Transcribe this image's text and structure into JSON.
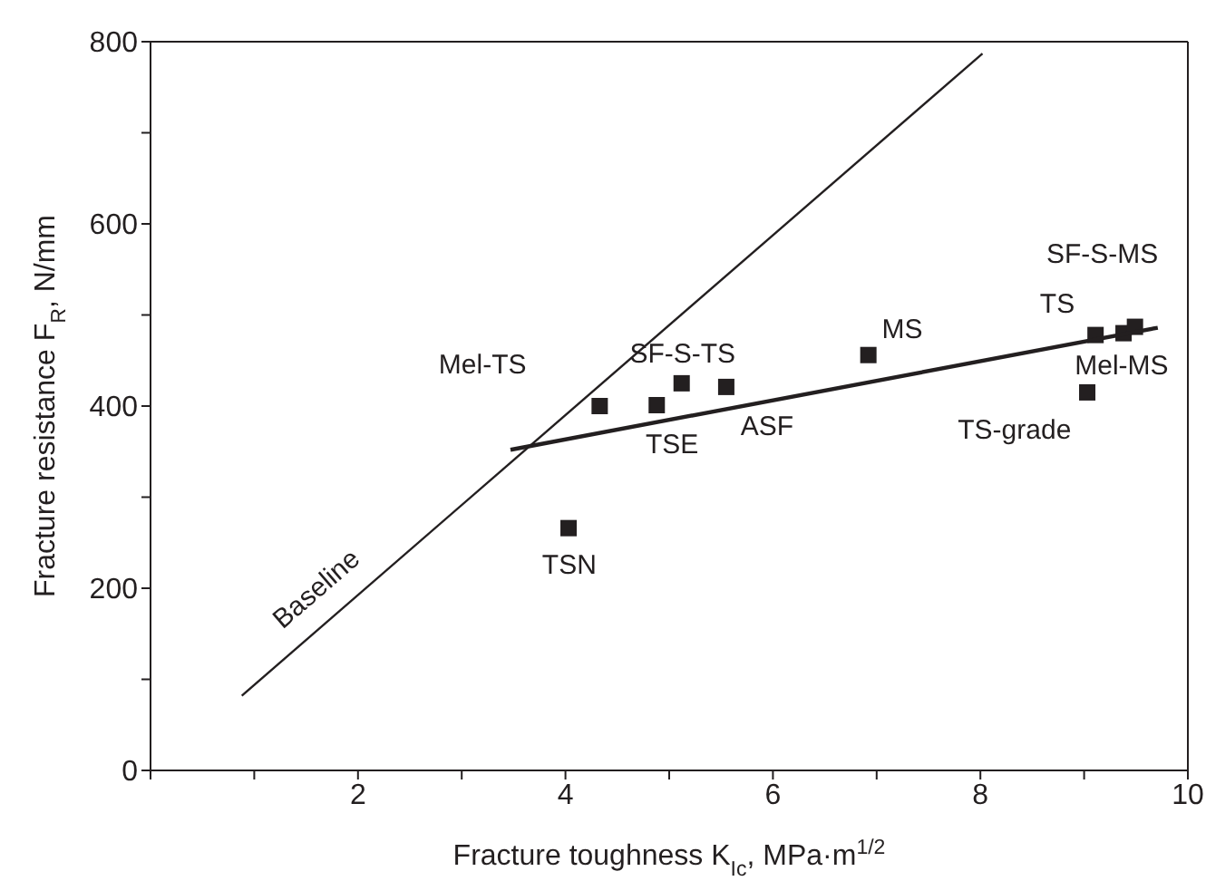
{
  "chart_data": {
    "type": "scatter",
    "xlabel": "Fracture toughness K$_{Ic}$, MPa·m$^{1/2}$",
    "ylabel": "Fracture resistance F$_{R}$, N/mm",
    "xlim": [
      0,
      10
    ],
    "ylim": [
      0,
      800
    ],
    "xticks": [
      {
        "value": 0,
        "label": null
      },
      {
        "value": 1,
        "label": null
      },
      2,
      {
        "value": 3,
        "label": null
      },
      4,
      {
        "value": 5,
        "label": null
      },
      6,
      {
        "value": 7,
        "label": null
      },
      8,
      {
        "value": 9,
        "label": null
      },
      10
    ],
    "yticks": [
      0,
      {
        "value": 100,
        "label": null
      },
      200,
      {
        "value": 300,
        "label": null
      },
      400,
      {
        "value": 500,
        "label": null
      },
      600,
      {
        "value": 700,
        "label": null
      },
      800
    ],
    "grid": false,
    "legend": false,
    "marker": "square",
    "series": [
      {
        "type": "scatter",
        "color": "#231f20",
        "x": [
          4.33,
          4.88,
          5.12,
          5.55,
          4.03,
          6.92,
          9.03,
          9.11,
          9.38,
          9.49
        ],
        "values": [
          400,
          401,
          425,
          421,
          266,
          456,
          415,
          478,
          480,
          487
        ]
      },
      {
        "type": "line",
        "marker": "none",
        "color": "#231f20",
        "x": [
          3.47,
          9.71
        ],
        "values": [
          352,
          486
        ]
      },
      {
        "type": "line",
        "marker": "none",
        "name": "Baseline",
        "color": "#231f20",
        "x": [
          0.88,
          8.02
        ],
        "values": [
          82,
          787
        ]
      }
    ],
    "annotations": [
      {
        "text": "Mel-TS",
        "x": 4.33,
        "y": 400
      },
      {
        "text": "TSE",
        "x": 4.88,
        "y": 401
      },
      {
        "text": "SF-S-TS",
        "x": 5.12,
        "y": 425
      },
      {
        "text": "ASF",
        "x": 5.55,
        "y": 421
      },
      {
        "text": "TSN",
        "x": 4.03,
        "y": 266
      },
      {
        "text": "MS",
        "x": 6.92,
        "y": 456
      },
      {
        "text": "TS-grade",
        "x": 9.03,
        "y": 415
      },
      {
        "text": "TS",
        "x": 9.11,
        "y": 478
      },
      {
        "text": "Mel-MS",
        "x": 9.38,
        "y": 480
      },
      {
        "text": "SF-S-MS",
        "x": 9.49,
        "y": 487
      }
    ]
  }
}
